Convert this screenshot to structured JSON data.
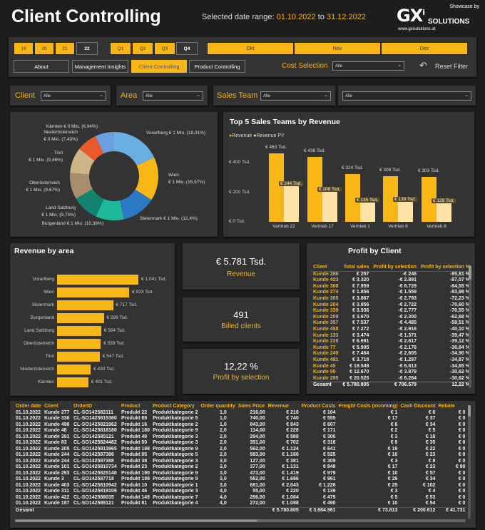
{
  "header": {
    "title": "Client Controlling",
    "date_prefix": "Selected date range:",
    "date_from": "01.10.2022",
    "date_sep": "to",
    "date_to": "31.12.2022",
    "showcase": "Showcase by",
    "logo_text": "GXi SOLUTIONS",
    "logo_url": "www.gxisolutions.at"
  },
  "colors": {
    "accent": "#f8b715",
    "panel": "#333333",
    "background": "#1d1d1d"
  },
  "controls": {
    "years": [
      {
        "label": "19",
        "selected": false
      },
      {
        "label": "20",
        "selected": false
      },
      {
        "label": "21",
        "selected": false
      },
      {
        "label": "22",
        "selected": true
      }
    ],
    "quarters": [
      {
        "label": "Q1",
        "selected": false
      },
      {
        "label": "Q2",
        "selected": false
      },
      {
        "label": "Q3",
        "selected": false
      },
      {
        "label": "Q4",
        "selected": true
      }
    ],
    "months": [
      "Okt",
      "Nov",
      "Dez"
    ],
    "nav": [
      {
        "label": "About",
        "active": false
      },
      {
        "label": "Management Insights",
        "active": false
      },
      {
        "label": "Client Controlling",
        "active": true
      },
      {
        "label": "Product Controlling",
        "active": false
      }
    ],
    "cost_selection_label": "Cost Selection",
    "cost_selection_value": "Alle",
    "reset_label": "Reset Filter",
    "reset_icon": "undo-arrow-icon"
  },
  "filters": {
    "client_label": "Client",
    "client_value": "Alle",
    "area_label": "Area",
    "area_value": "Alle",
    "team_label": "Sales Team",
    "team_value": "Alle",
    "extra_value": "Alle"
  },
  "donut": {
    "chart_data": {
      "type": "pie",
      "slices": [
        {
          "name": "Vorarlberg",
          "value_label": "€ 1 Mio.",
          "percent": 18.01,
          "percent_label": "18,01%",
          "color": "#6aafe4"
        },
        {
          "name": "Wien",
          "value_label": "€ 1 Mio.",
          "percent": 15.97,
          "percent_label": "15,97%",
          "color": "#f8b715"
        },
        {
          "name": "Steiermark",
          "value_label": "€ 1 Mio.",
          "percent": 12.4,
          "percent_label": "12,4%",
          "color": "#2b78c5"
        },
        {
          "name": "Burgenland",
          "value_label": "€ 1 Mio.",
          "percent": 10.36,
          "percent_label": "10,36%",
          "color": "#1db99a"
        },
        {
          "name": "Land Salzburg",
          "value_label": "€ 1 Mio.",
          "percent": 9.75,
          "percent_label": "9,75%",
          "color": "#128371"
        },
        {
          "name": "Oberösterreich",
          "value_label": "€ 1 Mio.",
          "percent": 9.67,
          "percent_label": "9,67%",
          "color": "#a88d6f"
        },
        {
          "name": "Tirol",
          "value_label": "€ 1 Mio.",
          "percent": 9.46,
          "percent_label": "9,46%",
          "color": "#cdb586"
        },
        {
          "name": "Niederösterreich",
          "value_label": "€ 0 Mio.",
          "percent": 7.43,
          "percent_label": "7,43%",
          "color": "#ea5a28"
        },
        {
          "name": "Kärnten",
          "value_label": "€ 0 Mio.",
          "percent": 6.94,
          "percent_label": "6,94%",
          "color": "#6b9fe0"
        }
      ]
    }
  },
  "teams": {
    "chart_data": {
      "type": "bar",
      "title": "Top 5 Sales Teams by Revenue",
      "categories": [
        "Vertrieb 22",
        "Vertrieb 17",
        "Vertrieb 1",
        "Vertrieb 6",
        "Vertrieb 8"
      ],
      "series": [
        {
          "name": "Revenue",
          "values": [
            463,
            438,
            324,
            308,
            303
          ],
          "labels": [
            "€ 463 Tsd.",
            "€ 438 Tsd.",
            "€ 324 Tsd.",
            "€ 308 Tsd.",
            "€ 303 Tsd."
          ],
          "color": "#f8b715"
        },
        {
          "name": "Revenue PY",
          "values": [
            244,
            208,
            135,
            139,
            129
          ],
          "labels": [
            "€ 244 Tsd.",
            "€ 208 Tsd.",
            "€ 135 Tsd.",
            "€ 139 Tsd.",
            "€ 129 Tsd."
          ],
          "color": "#fde4a6"
        }
      ],
      "yticks": [
        0,
        200,
        400
      ],
      "ytick_labels": [
        "€ 0 Tsd.",
        "€ 200 Tsd.",
        "€ 400 Tsd."
      ],
      "ylim": [
        0,
        500
      ],
      "legend": "top-left"
    }
  },
  "area": {
    "chart_data": {
      "type": "bar",
      "orientation": "horizontal",
      "title": "Revenue by area",
      "categories": [
        "Vorarlberg",
        "Wien",
        "Steiermark",
        "Burgenland",
        "Land Salzburg",
        "Oberösterreich",
        "Tirol",
        "Niederösterreich",
        "Kärnten"
      ],
      "values": [
        1041,
        923,
        717,
        599,
        564,
        559,
        547,
        430,
        401
      ],
      "labels": [
        "€ 1.041 Tsd.",
        "€ 923 Tsd.",
        "€ 717 Tsd.",
        "€ 599 Tsd.",
        "€ 564 Tsd.",
        "€ 559 Tsd.",
        "€ 547 Tsd.",
        "€ 430 Tsd.",
        "€ 401 Tsd."
      ]
    }
  },
  "kpis": [
    {
      "value": "€ 5.781 Tsd.",
      "label": "Revenue"
    },
    {
      "value": "491",
      "label": "Billed clients"
    },
    {
      "value": "12,22 %",
      "label": "Profit by selection"
    }
  ],
  "profit": {
    "title": "Profit by Client",
    "columns": [
      "Client",
      "Total sales",
      "Profit by selection",
      "Profit by selection %"
    ],
    "rows": [
      [
        "Kunde 286",
        "€ 257",
        "-€ 246",
        "-95,81 %"
      ],
      [
        "Kunde 423",
        "€ 3.320",
        "-€ 2.891",
        "-87,07 %"
      ],
      [
        "Kunde 308",
        "€ 7.959",
        "-€ 6.729",
        "-84,55 %"
      ],
      [
        "Kunde 274",
        "€ 1.856",
        "-€ 1.559",
        "-83,98 %"
      ],
      [
        "Kunde 305",
        "€ 3.867",
        "-€ 2.793",
        "-72,23 %"
      ],
      [
        "Kunde 204",
        "€ 3.856",
        "-€ 2.722",
        "-70,60 %"
      ],
      [
        "Kunde 339",
        "€ 3.936",
        "-€ 2.777",
        "-70,55 %"
      ],
      [
        "Kunde 209",
        "€ 3.670",
        "-€ 2.300",
        "-62,68 %"
      ],
      [
        "Kunde 357",
        "€ 7.537",
        "-€ 4.485",
        "-59,51 %"
      ],
      [
        "Kunde 458",
        "€ 7.272",
        "-€ 2.916",
        "-40,10 %"
      ],
      [
        "Kunde 133",
        "€ 3.474",
        "-€ 1.371",
        "-39,47 %"
      ],
      [
        "Kunde 228",
        "€ 6.691",
        "-€ 2.617",
        "-39,12 %"
      ],
      [
        "Kunde 77",
        "€ 5.905",
        "-€ 2.176",
        "-36,84 %"
      ],
      [
        "Kunde 249",
        "€ 7.464",
        "-€ 2.605",
        "-34,90 %"
      ],
      [
        "Kunde 481",
        "€ 3.718",
        "-€ 1.297",
        "-34,87 %"
      ],
      [
        "Kunde 45",
        "€ 19.549",
        "-€ 6.813",
        "-34,85 %"
      ],
      [
        "Kunde 90",
        "€ 12.670",
        "-€ 3.879",
        "-30,62 %"
      ],
      [
        "Kunde 295",
        "€ 20.525",
        "-€ 6.284",
        "-30,62 %"
      ]
    ],
    "total": [
      "Gesamt",
      "€ 5.780.805",
      "€ 706.579",
      "12,22 %"
    ]
  },
  "orders": {
    "columns": [
      "Order date",
      "Client",
      "OrderID",
      "Product",
      "Product Category",
      "Order quantity",
      "Sales Price",
      "Revenue",
      "Product Costs",
      "Freight Costs (incoming)",
      "Cash Discount",
      "Rebate",
      "Sa"
    ],
    "rows": [
      [
        "01.10.2022",
        "Kunde 277",
        "CL-SO142582111",
        "Produkt 22",
        "Produktkategorie 2",
        "1,0",
        "216,00",
        "€ 216",
        "€ 104",
        "€ 1",
        "€ 6",
        "€ 0"
      ],
      [
        "01.10.2022",
        "Kunde 336",
        "CL-SO1425815360",
        "Produkt 89",
        "Produktkategorie 5",
        "1,0",
        "740,00",
        "€ 740",
        "€ 555",
        "€ 17",
        "€ 37",
        "€ 0"
      ],
      [
        "01.10.2022",
        "Kunde 498",
        "CL-SO1425821962",
        "Produkt 16",
        "Produktkategorie 2",
        "1,0",
        "843,00",
        "€ 843",
        "€ 607",
        "€ 6",
        "€ 34",
        "€ 0"
      ],
      [
        "01.10.2022",
        "Kunde 48",
        "CL-SO1425818180",
        "Produkt 180",
        "Produktkategorie 9",
        "2,0",
        "114,00",
        "€ 228",
        "€ 171",
        "€ 2",
        "€ 5",
        "€ 0"
      ],
      [
        "01.10.2022",
        "Kunde 391",
        "CL-SO142585121",
        "Produkt 48",
        "Produktkategorie 3",
        "2,0",
        "294,00",
        "€ 588",
        "€ 300",
        "€ 3",
        "€ 18",
        "€ 0"
      ],
      [
        "01.10.2022",
        "Kunde 83",
        "CL-SO1425824482",
        "Produkt 50",
        "Produktkategorie 3",
        "2,0",
        "351,00",
        "€ 702",
        "€ 316",
        "€ 9",
        "€ 35",
        "€ 0"
      ],
      [
        "01.10.2022",
        "Kunde 205",
        "CL-SO1425813965",
        "Produkt 198",
        "Produktkategorie 9",
        "2,0",
        "562,00",
        "€ 1.124",
        "€ 641",
        "€ 19",
        "€ 22",
        "€ 0"
      ],
      [
        "01.10.2022",
        "Kunde 244",
        "CL-SO142587388",
        "Produkt 95",
        "Produktkategorie 5",
        "2,0",
        "583,00",
        "€ 1.166",
        "€ 525",
        "€ 10",
        "€ 23",
        "€ 0"
      ],
      [
        "01.10.2022",
        "Kunde 244",
        "CL-SO142587388",
        "Produkt 38",
        "Produktkategorie 3",
        "3,0",
        "127,00",
        "€ 381",
        "€ 309",
        "€ 3",
        "€ 8",
        "€ 0"
      ],
      [
        "01.10.2022",
        "Kunde 101",
        "CL-SO1425810734",
        "Produkt 23",
        "Produktkategorie 2",
        "3,0",
        "377,00",
        "€ 1.131",
        "€ 848",
        "€ 17",
        "€ 23",
        "€ 90"
      ],
      [
        "01.10.2022",
        "Kunde 293",
        "CL-SO1425825148",
        "Produkt 190",
        "Produktkategorie 9",
        "3,0",
        "473,00",
        "€ 1.419",
        "€ 979",
        "€ 10",
        "€ 57",
        "€ 0"
      ],
      [
        "01.10.2022",
        "Kunde 3",
        "CL-SO142587718",
        "Produkt 198",
        "Produktkategorie 9",
        "3,0",
        "562,00",
        "€ 1.686",
        "€ 961",
        "€ 29",
        "€ 34",
        "€ 0"
      ],
      [
        "01.10.2022",
        "Kunde 403",
        "CL-SO1425810942",
        "Produkt 10",
        "Produktkategorie 1",
        "3,0",
        "681,00",
        "€ 2.043",
        "€ 1.226",
        "€ 25",
        "€ 102",
        "€ 0"
      ],
      [
        "01.10.2022",
        "Kunde 311",
        "CL-SO1425819109",
        "Produkt 46",
        "Produktkategorie 3",
        "4,0",
        "55,00",
        "€ 220",
        "€ 139",
        "€ 3",
        "€ 4",
        "€ 0"
      ],
      [
        "01.10.2022",
        "Kunde 422",
        "CL-SO142588035",
        "Produkt 149",
        "Produktkategorie 7",
        "4,0",
        "266,00",
        "€ 1.064",
        "€ 479",
        "€ 5",
        "€ 53",
        "€ 0"
      ],
      [
        "01.10.2022",
        "Kunde 187",
        "CL-SO142589121",
        "Produkt 81",
        "Produktkategorie 4",
        "4,0",
        "272,00",
        "€ 1.088",
        "€ 490",
        "€ 10",
        "€ 54",
        "€ 0"
      ]
    ],
    "total": [
      "Gesamt",
      "",
      "",
      "",
      "",
      "",
      "",
      "€ 5.780.805",
      "€ 3.684.961",
      "€ 73.813",
      "€ 200.612",
      "€ 41.731"
    ]
  }
}
